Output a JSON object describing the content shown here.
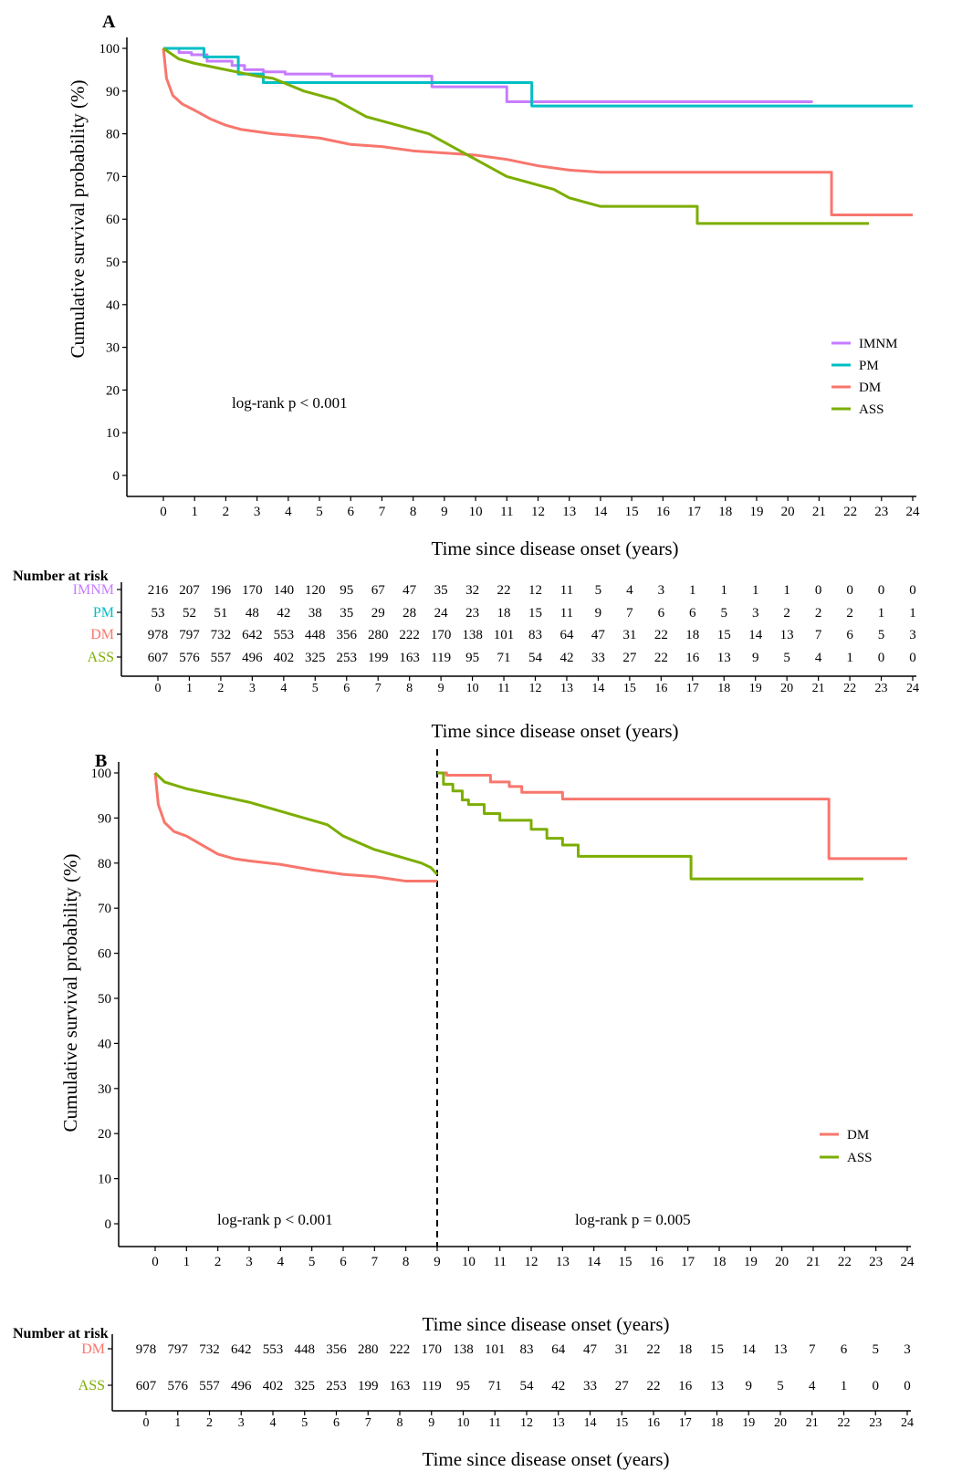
{
  "colors": {
    "IMNM": "#c77cff",
    "PM": "#00bfc4",
    "DM": "#f8766d",
    "ASS": "#7cae00",
    "axis": "#000000"
  },
  "chart_data": [
    {
      "panel": "A",
      "type": "line",
      "title": "",
      "xlabel": "Time since disease onset (years)",
      "ylabel": "Cumulative survival probability (%)",
      "xlim": [
        0,
        24
      ],
      "ylim": [
        0,
        100
      ],
      "x_ticks": [
        "0",
        "1",
        "2",
        "3",
        "4",
        "5",
        "6",
        "7",
        "8",
        "9",
        "10",
        "11",
        "12",
        "13",
        "14",
        "15",
        "16",
        "17",
        "18",
        "19",
        "20",
        "21",
        "22",
        "23",
        "24"
      ],
      "y_ticks": [
        "0",
        "10",
        "20",
        "30",
        "40",
        "50",
        "60",
        "70",
        "80",
        "90",
        "100"
      ],
      "annotation": "log-rank p < 0.001",
      "legend_position": "right",
      "series": [
        {
          "name": "IMNM",
          "style": "step",
          "points": [
            [
              0,
              100
            ],
            [
              0.5,
              99
            ],
            [
              0.9,
              98.5
            ],
            [
              1.4,
              97
            ],
            [
              2.2,
              96
            ],
            [
              2.6,
              95
            ],
            [
              3.2,
              94.5
            ],
            [
              3.9,
              94
            ],
            [
              5.4,
              93.5
            ],
            [
              7.5,
              93.5
            ],
            [
              8.6,
              91
            ],
            [
              10.8,
              91
            ],
            [
              11,
              87.5
            ],
            [
              20.8,
              87.5
            ]
          ]
        },
        {
          "name": "PM",
          "style": "step",
          "points": [
            [
              0,
              100
            ],
            [
              1.3,
              100
            ],
            [
              1.3,
              98
            ],
            [
              2.4,
              98
            ],
            [
              2.4,
              94
            ],
            [
              3.2,
              94
            ],
            [
              3.2,
              92
            ],
            [
              11.8,
              92
            ],
            [
              11.8,
              86.5
            ],
            [
              24,
              86.5
            ]
          ]
        },
        {
          "name": "DM",
          "style": "curve",
          "points": [
            [
              0,
              100
            ],
            [
              0.1,
              93
            ],
            [
              0.3,
              89
            ],
            [
              0.6,
              87
            ],
            [
              1,
              85.5
            ],
            [
              1.5,
              83.5
            ],
            [
              2,
              82
            ],
            [
              2.5,
              81
            ],
            [
              3,
              80.5
            ],
            [
              3.5,
              80
            ],
            [
              4,
              79.7
            ],
            [
              5,
              79
            ],
            [
              6,
              77.5
            ],
            [
              7,
              77
            ],
            [
              8,
              76
            ],
            [
              9,
              75.5
            ],
            [
              10,
              75
            ],
            [
              11,
              74
            ],
            [
              12,
              72.5
            ],
            [
              13,
              71.5
            ],
            [
              14,
              71
            ],
            [
              21.4,
              71
            ],
            [
              21.4,
              61
            ],
            [
              24,
              61
            ]
          ]
        },
        {
          "name": "ASS",
          "style": "curve",
          "points": [
            [
              0,
              100
            ],
            [
              0.5,
              97.5
            ],
            [
              1,
              96.5
            ],
            [
              2,
              95
            ],
            [
              3,
              93.5
            ],
            [
              3.5,
              93
            ],
            [
              4,
              91.5
            ],
            [
              4.5,
              90
            ],
            [
              5,
              89
            ],
            [
              5.5,
              88
            ],
            [
              6,
              86
            ],
            [
              6.5,
              84
            ],
            [
              7,
              83
            ],
            [
              7.5,
              82
            ],
            [
              8,
              81
            ],
            [
              8.5,
              80
            ],
            [
              9,
              78
            ],
            [
              9.5,
              76
            ],
            [
              10,
              74
            ],
            [
              10.5,
              72
            ],
            [
              11,
              70
            ],
            [
              11.5,
              69
            ],
            [
              12,
              68
            ],
            [
              12.5,
              67
            ],
            [
              13,
              65
            ],
            [
              14,
              63
            ],
            [
              17.1,
              63
            ],
            [
              17.1,
              59
            ],
            [
              22.6,
              59
            ]
          ]
        }
      ],
      "risk_table": {
        "title": "Number at risk",
        "xlabel": "Time since disease onset (years)",
        "groups": [
          "IMNM",
          "PM",
          "DM",
          "ASS"
        ],
        "rows": [
          [
            "216",
            "207",
            "196",
            "170",
            "140",
            "120",
            "95",
            "67",
            "47",
            "35",
            "32",
            "22",
            "12",
            "11",
            "5",
            "4",
            "3",
            "1",
            "1",
            "1",
            "1",
            "0",
            "0",
            "0",
            "0"
          ],
          [
            "53",
            "52",
            "51",
            "48",
            "42",
            "38",
            "35",
            "29",
            "28",
            "24",
            "23",
            "18",
            "15",
            "11",
            "9",
            "7",
            "6",
            "6",
            "5",
            "3",
            "2",
            "2",
            "2",
            "1",
            "1"
          ],
          [
            "978",
            "797",
            "732",
            "642",
            "553",
            "448",
            "356",
            "280",
            "222",
            "170",
            "138",
            "101",
            "83",
            "64",
            "47",
            "31",
            "22",
            "18",
            "15",
            "14",
            "13",
            "7",
            "6",
            "5",
            "3"
          ],
          [
            "607",
            "576",
            "557",
            "496",
            "402",
            "325",
            "253",
            "199",
            "163",
            "119",
            "95",
            "71",
            "54",
            "42",
            "33",
            "27",
            "22",
            "16",
            "13",
            "9",
            "5",
            "4",
            "1",
            "0",
            "0"
          ]
        ]
      }
    },
    {
      "panel": "B",
      "type": "line",
      "title": "",
      "xlabel": "Time since disease onset (years)",
      "ylabel": "Cumulative survival probability (%)",
      "xlim": [
        0,
        24
      ],
      "ylim": [
        0,
        100
      ],
      "x_ticks": [
        "0",
        "1",
        "2",
        "3",
        "4",
        "5",
        "6",
        "7",
        "8",
        "9",
        "10",
        "11",
        "12",
        "13",
        "14",
        "15",
        "16",
        "17",
        "18",
        "19",
        "20",
        "21",
        "22",
        "23",
        "24"
      ],
      "y_ticks": [
        "0",
        "10",
        "20",
        "30",
        "40",
        "50",
        "60",
        "70",
        "80",
        "90",
        "100"
      ],
      "landmark_year": 9,
      "annotations": [
        "log-rank p < 0.001",
        "log-rank p = 0.005"
      ],
      "legend_position": "right",
      "series": [
        {
          "name": "DM",
          "style": "curve",
          "points": [
            [
              0,
              100
            ],
            [
              0.1,
              93
            ],
            [
              0.3,
              89
            ],
            [
              0.6,
              87
            ],
            [
              1,
              86
            ],
            [
              1.5,
              84
            ],
            [
              2,
              82
            ],
            [
              2.5,
              81
            ],
            [
              3,
              80.5
            ],
            [
              4,
              79.7
            ],
            [
              5,
              78.5
            ],
            [
              6,
              77.5
            ],
            [
              7,
              77
            ],
            [
              7.5,
              76.5
            ],
            [
              8,
              76
            ],
            [
              9,
              76
            ]
          ]
        },
        {
          "name": "DM",
          "style": "step",
          "points": [
            [
              9,
              100
            ],
            [
              9.3,
              100
            ],
            [
              9.3,
              99.5
            ],
            [
              10.7,
              99.5
            ],
            [
              10.7,
              98
            ],
            [
              11.3,
              98
            ],
            [
              11.3,
              97
            ],
            [
              11.7,
              97
            ],
            [
              11.7,
              95.7
            ],
            [
              13,
              95.7
            ],
            [
              13,
              94.2
            ],
            [
              21.5,
              94.2
            ],
            [
              21.5,
              81
            ],
            [
              24,
              81
            ]
          ]
        },
        {
          "name": "ASS",
          "style": "curve",
          "points": [
            [
              0,
              100
            ],
            [
              0.3,
              98
            ],
            [
              1,
              96.5
            ],
            [
              2,
              95
            ],
            [
              3,
              93.5
            ],
            [
              4,
              91.5
            ],
            [
              5,
              89.5
            ],
            [
              5.5,
              88.5
            ],
            [
              6,
              86
            ],
            [
              7,
              83
            ],
            [
              8,
              81
            ],
            [
              8.5,
              80
            ],
            [
              8.8,
              79
            ],
            [
              9,
              77.5
            ]
          ]
        },
        {
          "name": "ASS",
          "style": "step",
          "points": [
            [
              9,
              100
            ],
            [
              9.2,
              97.5
            ],
            [
              9.5,
              96
            ],
            [
              9.8,
              94
            ],
            [
              10,
              93
            ],
            [
              10.5,
              91
            ],
            [
              11,
              89.5
            ],
            [
              12,
              87.5
            ],
            [
              12.5,
              85.5
            ],
            [
              13,
              84
            ],
            [
              13.5,
              81.5
            ],
            [
              17.1,
              81.5
            ],
            [
              17.1,
              76.5
            ],
            [
              22.6,
              76.5
            ]
          ]
        }
      ],
      "risk_table": {
        "title": "Number at risk",
        "xlabel": "Time since disease onset (years)",
        "groups": [
          "DM",
          "ASS"
        ],
        "rows": [
          [
            "978",
            "797",
            "732",
            "642",
            "553",
            "448",
            "356",
            "280",
            "222",
            "170",
            "138",
            "101",
            "83",
            "64",
            "47",
            "31",
            "22",
            "18",
            "15",
            "14",
            "13",
            "7",
            "6",
            "5",
            "3"
          ],
          [
            "607",
            "576",
            "557",
            "496",
            "402",
            "325",
            "253",
            "199",
            "163",
            "119",
            "95",
            "71",
            "54",
            "42",
            "33",
            "27",
            "22",
            "16",
            "13",
            "9",
            "5",
            "4",
            "1",
            "0",
            "0"
          ]
        ]
      }
    }
  ],
  "labels": {
    "panel_a": "A",
    "panel_b": "B"
  }
}
